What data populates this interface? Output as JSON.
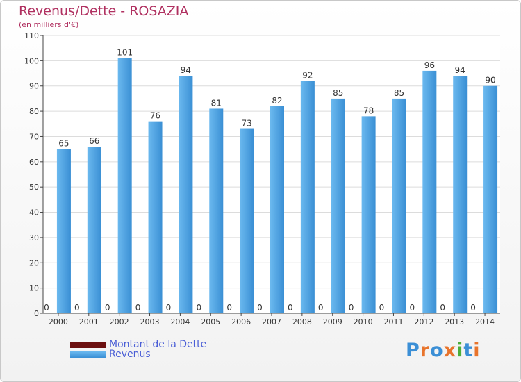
{
  "chart_data": {
    "type": "bar",
    "title": "Revenus/Dette - ROSAZIA",
    "subtitle": "(en milliers d'€)",
    "categories": [
      "2000",
      "2001",
      "2002",
      "2003",
      "2004",
      "2005",
      "2006",
      "2007",
      "2008",
      "2009",
      "2010",
      "2011",
      "2012",
      "2013",
      "2014"
    ],
    "series": [
      {
        "name": "Montant de la Dette",
        "color": "#6b0f0f",
        "values": [
          0,
          0,
          0,
          0,
          0,
          0,
          0,
          0,
          0,
          0,
          0,
          0,
          0,
          0,
          0
        ]
      },
      {
        "name": "Revenus",
        "color": "#4aa3e6",
        "values": [
          65,
          66,
          101,
          76,
          94,
          81,
          73,
          82,
          92,
          85,
          78,
          85,
          96,
          94,
          90
        ]
      }
    ],
    "ylim": [
      0,
      110
    ],
    "yticks": [
      0,
      10,
      20,
      30,
      40,
      50,
      60,
      70,
      80,
      90,
      100,
      110
    ],
    "grid": true,
    "legend": "bottom-left",
    "xlabel": "",
    "ylabel": ""
  },
  "logo": {
    "text": "Proxiti",
    "colors": [
      "#3b8fd6",
      "#e8742c",
      "#3b8fd6",
      "#e8742c",
      "#4cae3a",
      "#3b8fd6",
      "#e8742c"
    ]
  }
}
